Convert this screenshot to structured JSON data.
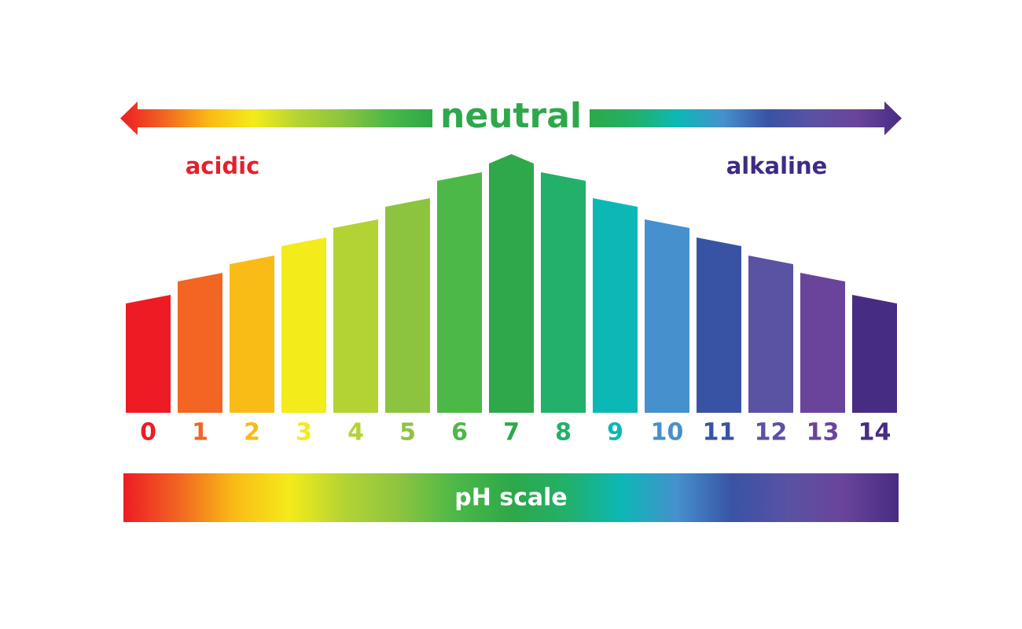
{
  "header": {
    "title": "neutral",
    "left_label": "acidic",
    "right_label": "alkaline"
  },
  "scale_label": "pH scale",
  "levels": [
    {
      "label": "0",
      "color": "#ed1c24"
    },
    {
      "label": "1",
      "color": "#f26522"
    },
    {
      "label": "2",
      "color": "#f9bb16"
    },
    {
      "label": "3",
      "color": "#f4eb1a"
    },
    {
      "label": "4",
      "color": "#b3d334"
    },
    {
      "label": "5",
      "color": "#8cc43f"
    },
    {
      "label": "6",
      "color": "#4cb848"
    },
    {
      "label": "7",
      "color": "#2ea84a"
    },
    {
      "label": "8",
      "color": "#22b06a"
    },
    {
      "label": "9",
      "color": "#0cb8b6"
    },
    {
      "label": "10",
      "color": "#4690cd"
    },
    {
      "label": "11",
      "color": "#3953a4"
    },
    {
      "label": "12",
      "color": "#5a52a3"
    },
    {
      "label": "13",
      "color": "#6a449b"
    },
    {
      "label": "14",
      "color": "#472c83"
    }
  ]
}
